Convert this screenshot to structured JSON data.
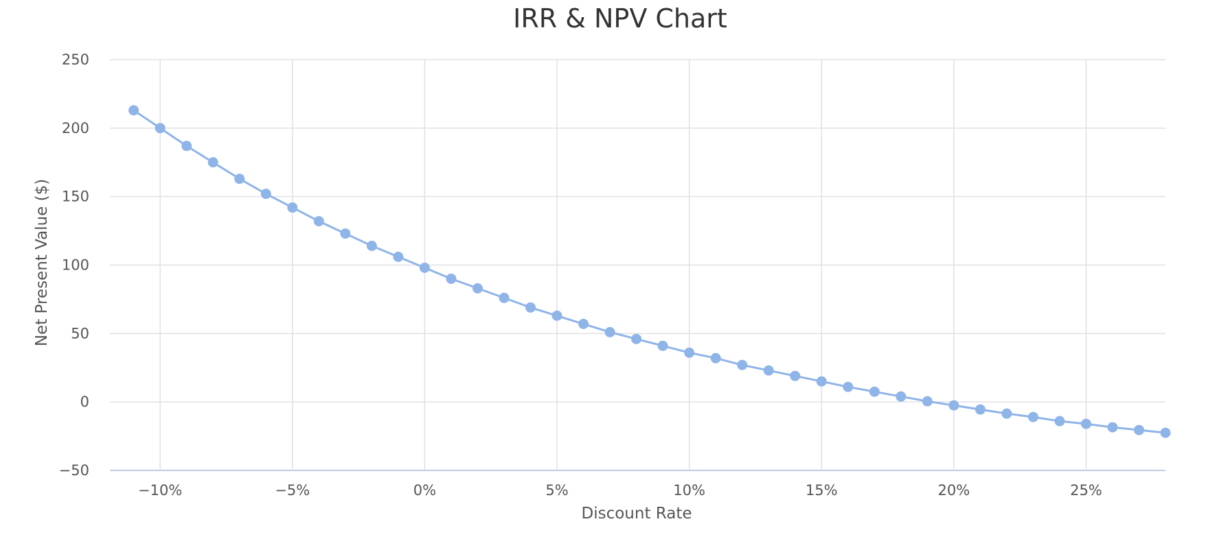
{
  "chart_data": {
    "type": "line",
    "title": "IRR & NPV Chart",
    "xlabel": "Discount Rate",
    "ylabel": "Net Present Value ($)",
    "xlim": [
      -11.9,
      28.0
    ],
    "ylim": [
      -50,
      250
    ],
    "x_ticks": [
      -10,
      -5,
      0,
      5,
      10,
      15,
      20,
      25
    ],
    "x_tick_labels": [
      "−10%",
      "−5%",
      "0%",
      "5%",
      "10%",
      "15%",
      "20%",
      "25%"
    ],
    "y_ticks": [
      -50,
      0,
      50,
      100,
      150,
      200,
      250
    ],
    "y_tick_labels": [
      "−50",
      "0",
      "50",
      "100",
      "150",
      "200",
      "250"
    ],
    "grid": true,
    "series": [
      {
        "color": "#8fb4e8",
        "x": [
          -11,
          -10,
          -9,
          -8,
          -7,
          -6,
          -5,
          -4,
          -3,
          -2,
          -1,
          0,
          1,
          2,
          3,
          4,
          5,
          6,
          7,
          8,
          9,
          10,
          11,
          12,
          13,
          14,
          15,
          16,
          17,
          18,
          19,
          20,
          21,
          22,
          23,
          24,
          25,
          26,
          27,
          28
        ],
        "y": [
          213,
          200,
          187,
          175,
          163,
          152,
          142,
          132,
          123,
          114,
          106,
          98,
          90,
          83,
          76,
          69,
          63,
          57,
          51,
          46,
          41,
          36,
          32,
          27,
          23,
          19,
          15,
          11,
          7.5,
          4,
          0.5,
          -2.5,
          -5.5,
          -8.5,
          -11,
          -14,
          -16,
          -18.5,
          -20.5,
          -22.5
        ]
      }
    ]
  }
}
